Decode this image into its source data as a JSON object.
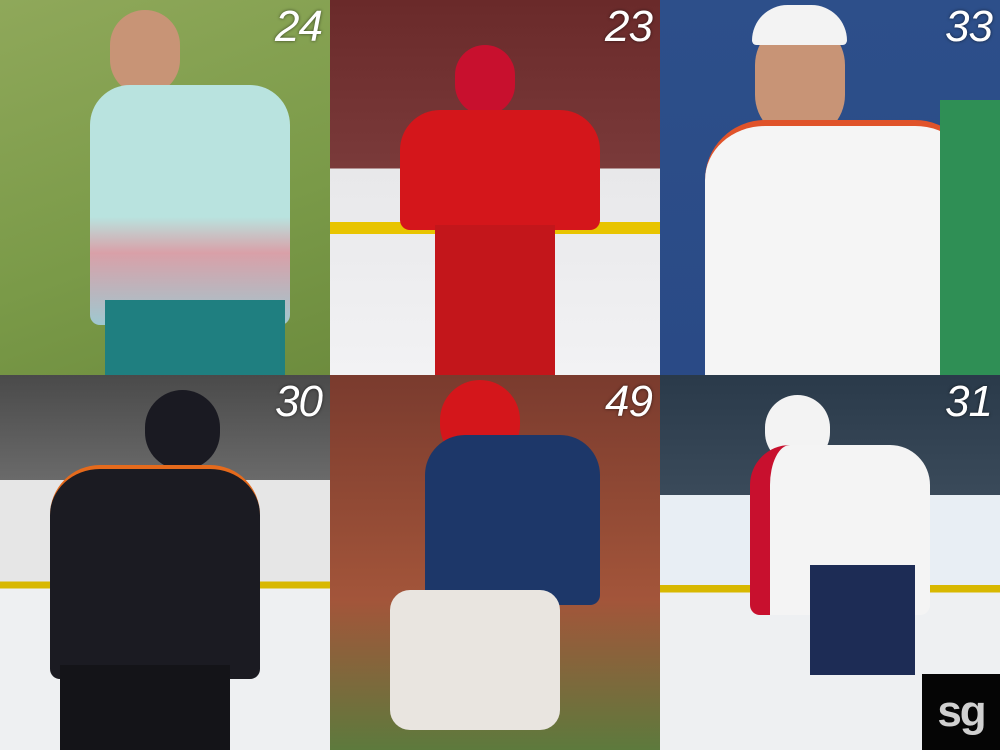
{
  "collage": {
    "panels": [
      {
        "number": "24",
        "scene": "tennis-grass",
        "kit_color": "#b9e3df"
      },
      {
        "number": "23",
        "scene": "hockey-rink",
        "kit_color": "#d4161b"
      },
      {
        "number": "33",
        "scene": "tennis-court",
        "kit_color": "#f5f5f5"
      },
      {
        "number": "30",
        "scene": "hockey-rink",
        "kit_color": "#1b1b22"
      },
      {
        "number": "49",
        "scene": "football-stadium",
        "kit_color": "#1d3769"
      },
      {
        "number": "31",
        "scene": "hockey-rink",
        "kit_color": "#f4f4f4"
      }
    ],
    "logo": "sg"
  }
}
